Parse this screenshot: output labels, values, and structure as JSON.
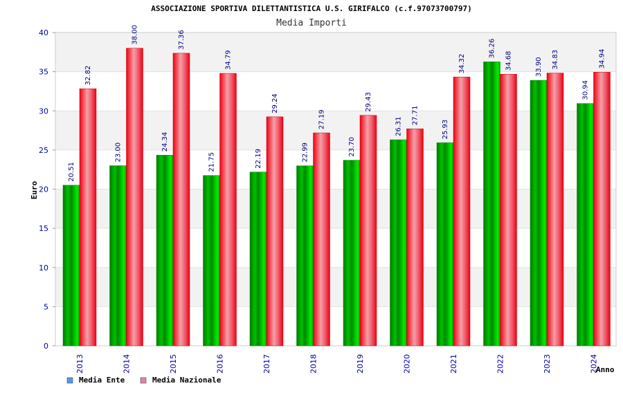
{
  "chart_data": {
    "type": "bar",
    "title": "ASSOCIAZIONE SPORTIVA DILETTANTISTICA U.S. GIRIFALCO (c.f.97073700797)",
    "subtitle": "Media Importi",
    "xlabel": "Anno",
    "ylabel": "Euro",
    "ylim": [
      0,
      40
    ],
    "yticks": [
      0,
      5,
      10,
      15,
      20,
      25,
      30,
      35,
      40
    ],
    "categories": [
      "2013",
      "2014",
      "2015",
      "2016",
      "2017",
      "2018",
      "2019",
      "2020",
      "2021",
      "2022",
      "2023",
      "2024"
    ],
    "series": [
      {
        "name": "Media Ente",
        "color": "#00aa00",
        "legend_color": "#5599ee",
        "values": [
          20.51,
          23.0,
          24.34,
          21.75,
          22.19,
          22.99,
          23.7,
          26.31,
          25.93,
          36.26,
          33.9,
          30.94
        ],
        "labels": [
          "20.51",
          "23.00",
          "24.34",
          "21.75",
          "22.19",
          "22.99",
          "23.70",
          "26.31",
          "25.93",
          "36.26",
          "33.90",
          "30.94"
        ]
      },
      {
        "name": "Media Nazionale",
        "color": "#ee1122",
        "legend_color": "#dd88aa",
        "values": [
          32.82,
          38.0,
          37.36,
          34.79,
          29.24,
          27.19,
          29.43,
          27.71,
          34.32,
          34.68,
          34.83,
          34.94
        ],
        "labels": [
          "32.82",
          "38.00",
          "37.36",
          "34.79",
          "29.24",
          "27.19",
          "29.43",
          "27.71",
          "34.32",
          "34.68",
          "34.83",
          "34.94"
        ]
      }
    ],
    "grid": true,
    "legend_position": "bottom-left"
  }
}
